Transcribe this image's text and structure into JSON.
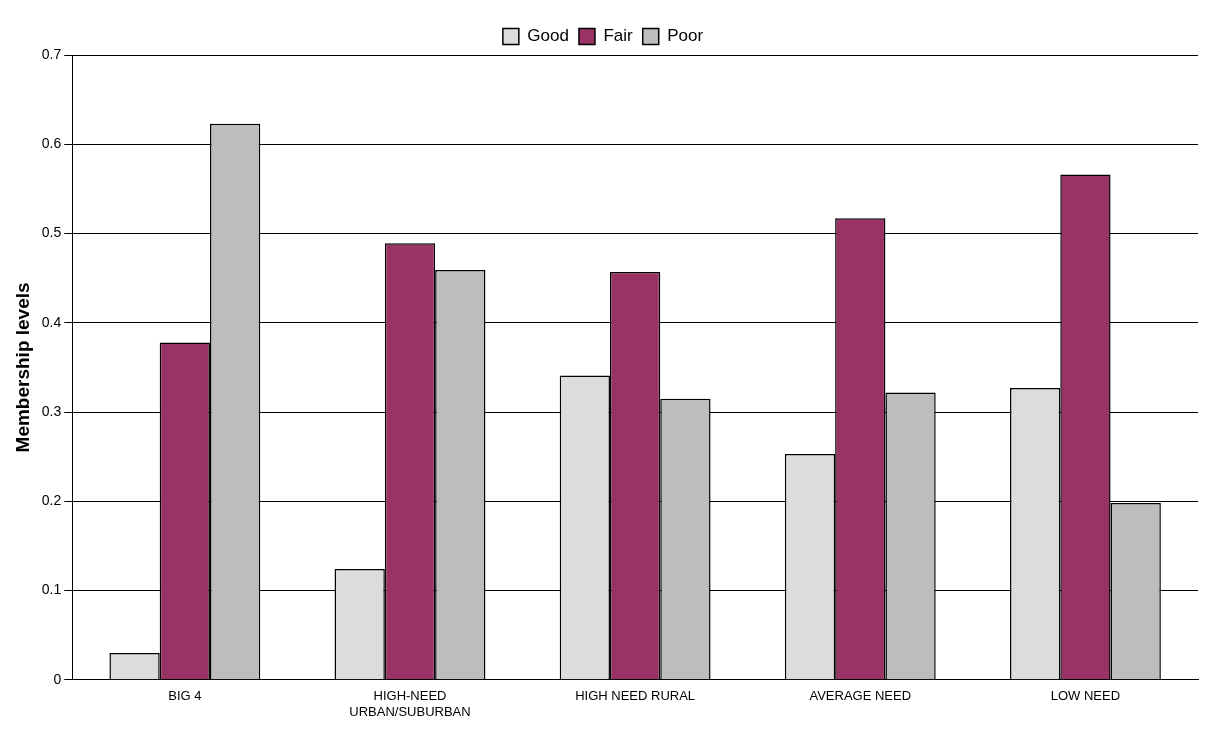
{
  "chart_data": {
    "type": "bar",
    "ylabel": "Membership levels",
    "categories": [
      "BIG 4",
      "HIGH-NEED URBAN/SUBURBAN",
      "HIGH NEED RURAL",
      "AVERAGE NEED",
      "LOW NEED"
    ],
    "series": [
      {
        "name": "Good",
        "color": "#dcdcdc",
        "values": [
          0.03,
          0.124,
          0.341,
          0.253,
          0.327
        ]
      },
      {
        "name": "Fair",
        "color": "#993366",
        "values": [
          0.378,
          0.489,
          0.457,
          0.517,
          0.566
        ]
      },
      {
        "name": "Poor",
        "color": "#bdbdbd",
        "values": [
          0.623,
          0.459,
          0.315,
          0.322,
          0.198
        ]
      }
    ],
    "ylim": [
      0,
      0.7
    ],
    "yticks": [
      0,
      0.1,
      0.2,
      0.3,
      0.4,
      0.5,
      0.6,
      0.7
    ],
    "grid": "y",
    "legend": "top"
  }
}
